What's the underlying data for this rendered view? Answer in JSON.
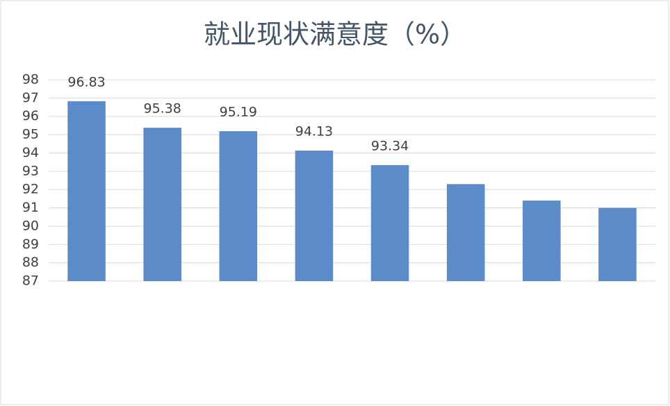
{
  "chart_data": {
    "type": "bar",
    "title": "就业现状满意度（%）",
    "categories": [
      null,
      null,
      null,
      null,
      null,
      null,
      null,
      null
    ],
    "values": [
      96.83,
      95.38,
      95.19,
      94.13,
      93.34,
      92.3,
      91.4,
      91.0
    ],
    "value_labels": [
      "96.83",
      "95.38",
      "95.19",
      "94.13",
      "93.34",
      null,
      null,
      null
    ],
    "color": "#5b8bc9",
    "ylim": [
      87,
      98
    ],
    "yticks": [
      87,
      88,
      89,
      90,
      91,
      92,
      93,
      94,
      95,
      96,
      97,
      98
    ],
    "grid": true
  }
}
